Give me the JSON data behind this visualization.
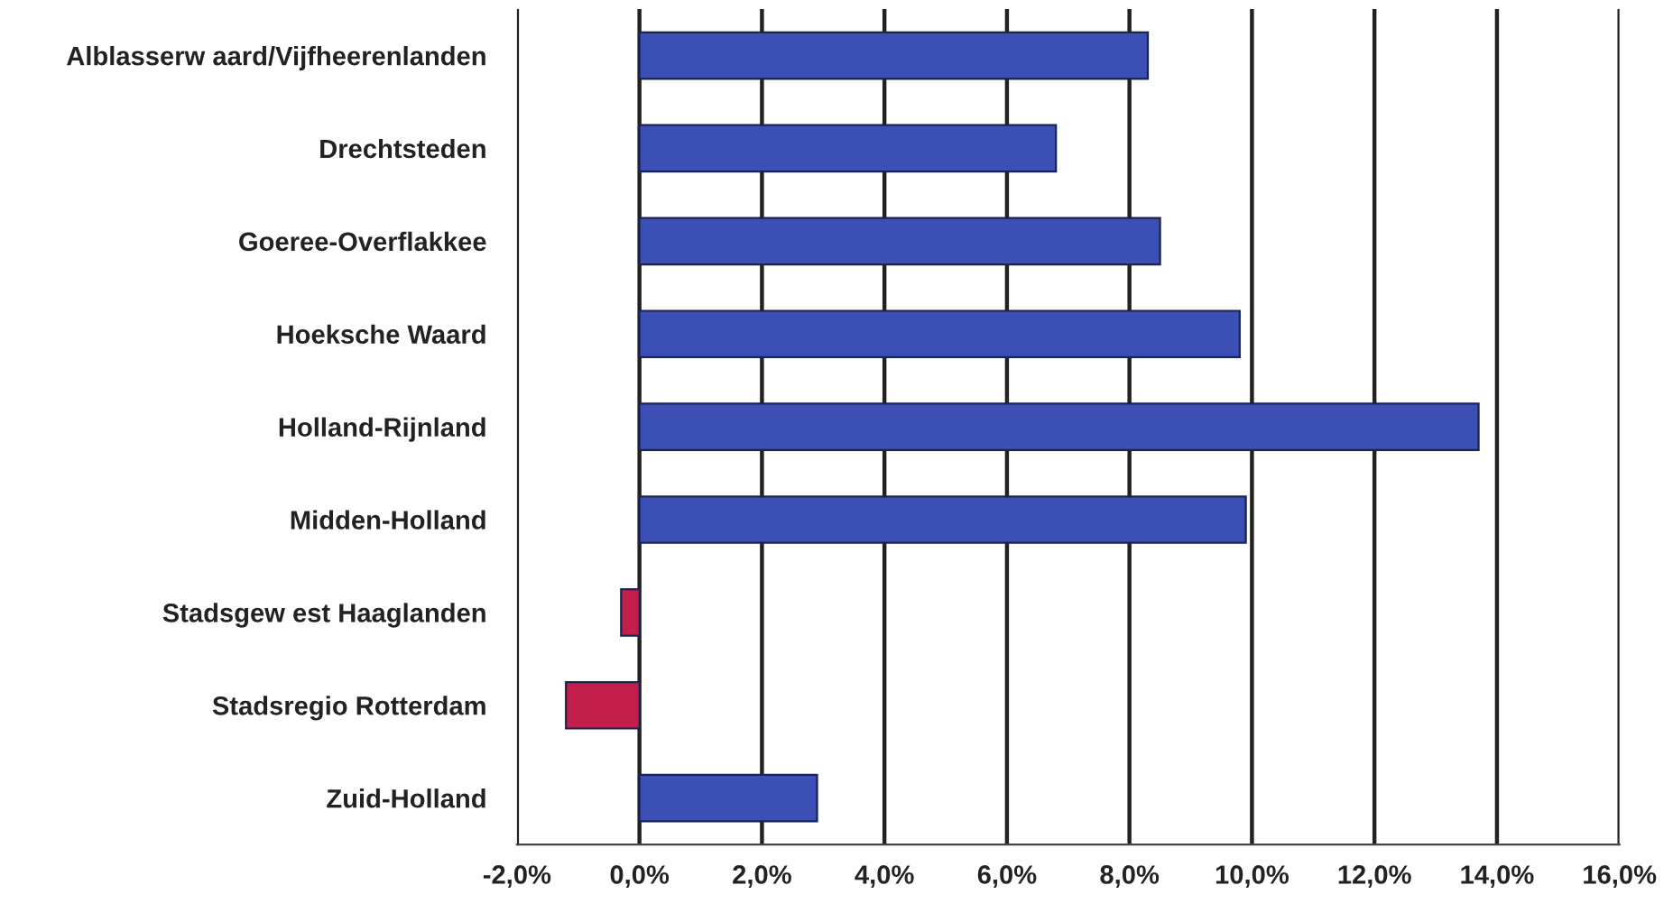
{
  "chart_data": {
    "type": "bar",
    "orientation": "horizontal",
    "categories": [
      "Alblasserw aard/Vijfheerenlanden",
      "Drechtsteden",
      "Goeree-Overflakkee",
      "Hoeksche Waard",
      "Holland-Rijnland",
      "Midden-Holland",
      "Stadsgew est Haaglanden",
      "Stadsregio Rotterdam",
      "Zuid-Holland"
    ],
    "values": [
      8.3,
      6.8,
      8.5,
      9.8,
      13.7,
      9.9,
      -0.3,
      -1.2,
      2.9
    ],
    "colors": [
      "#3b4fb5",
      "#3b4fb5",
      "#3b4fb5",
      "#3b4fb5",
      "#3b4fb5",
      "#3b4fb5",
      "#c21f4c",
      "#c21f4c",
      "#3b4fb5"
    ],
    "xlim": [
      -2,
      16
    ],
    "xticks": [
      {
        "value": -2,
        "label": "-2,0%"
      },
      {
        "value": 0,
        "label": "0,0%"
      },
      {
        "value": 2,
        "label": "2,0%"
      },
      {
        "value": 4,
        "label": "4,0%"
      },
      {
        "value": 6,
        "label": "6,0%"
      },
      {
        "value": 8,
        "label": "8,0%"
      },
      {
        "value": 10,
        "label": "10,0%"
      },
      {
        "value": 12,
        "label": "12,0%"
      },
      {
        "value": 14,
        "label": "14,0%"
      },
      {
        "value": 16,
        "label": "16,0%"
      }
    ],
    "grid": "x"
  }
}
